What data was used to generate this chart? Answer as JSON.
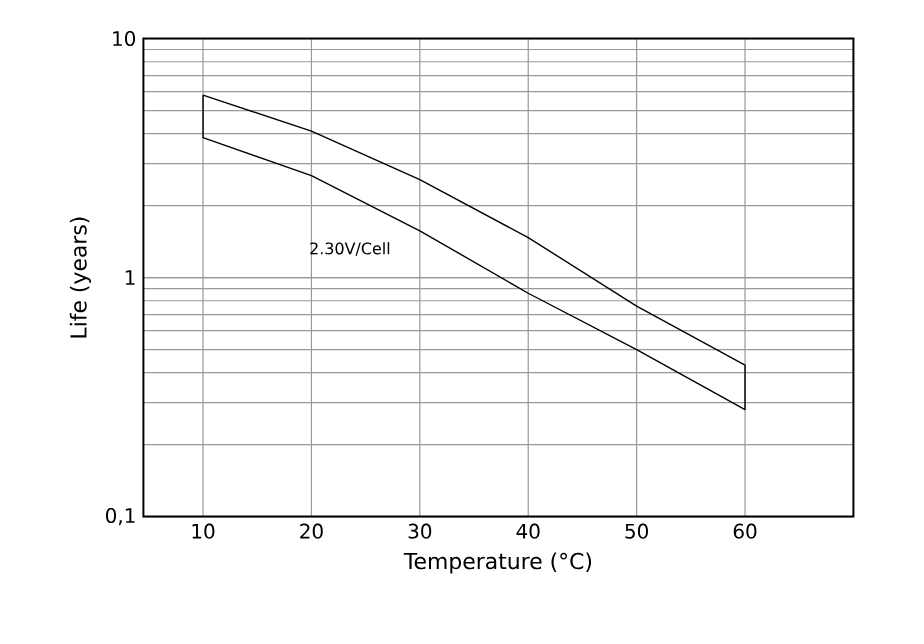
{
  "chart_data": {
    "type": "line",
    "xlabel": "Temperature (°C)",
    "ylabel": "Life (years)",
    "series": [
      {
        "color": "#000000",
        "x": [
          10,
          20,
          30,
          40,
          50,
          60,
          60
        ],
        "values": [
          5.8,
          4.1,
          2.57,
          1.47,
          0.76,
          0.43,
          0.28
        ]
      },
      {
        "color": "#000000",
        "x": [
          10,
          10,
          20,
          30,
          40,
          50,
          60
        ],
        "values": [
          5.8,
          3.85,
          2.67,
          1.57,
          0.86,
          0.5,
          0.28
        ]
      }
    ],
    "xlim": [
      4.5,
      70
    ],
    "xticks": [
      10,
      20,
      30,
      40,
      50,
      60
    ],
    "ylim": [
      0.1,
      10
    ],
    "yticks": [
      {
        "value": 0.1,
        "label": "0,1"
      },
      1,
      10
    ],
    "log": "y",
    "grid": true,
    "marker": "none",
    "line_style": "solid",
    "annotations": [
      "2.30V/Cell"
    ]
  }
}
